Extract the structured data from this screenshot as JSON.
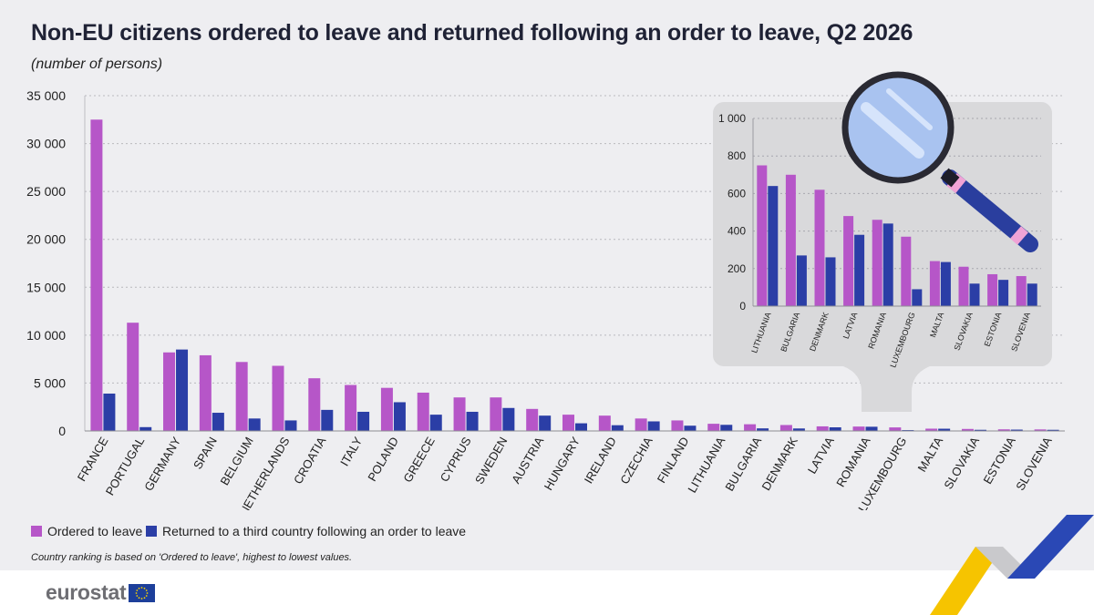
{
  "title": "Non-EU citizens ordered to leave and returned following an order to leave, Q2 2026",
  "subtitle": "(number of persons)",
  "note": "Country ranking is based on 'Ordered to leave', highest to lowest values.",
  "logo_text": "eurostat",
  "colors": {
    "ordered": "#b656c8",
    "returned": "#2b3ea6",
    "background": "#eeeef1",
    "inset_bg": "#d9d9db"
  },
  "legend": [
    {
      "label": "Ordered to leave",
      "color": "#b656c8"
    },
    {
      "label": "Returned to a third country following an order to leave",
      "color": "#2b3ea6"
    }
  ],
  "chart_data": [
    {
      "type": "bar",
      "title": "Non-EU citizens ordered to leave and returned following an order to leave, Q2 2026",
      "ylabel": "(number of persons)",
      "ylim": [
        0,
        35000
      ],
      "yticks": [
        0,
        5000,
        10000,
        15000,
        20000,
        25000,
        30000,
        35000
      ],
      "ytick_labels": [
        "0",
        "5 000",
        "10 000",
        "15 000",
        "20 000",
        "25 000",
        "30 000",
        "35 000"
      ],
      "grid": true,
      "categories": [
        "FRANCE",
        "PORTUGAL",
        "GERMANY",
        "SPAIN",
        "BELGIUM",
        "NETHERLANDS",
        "CROATIA",
        "ITALY",
        "POLAND",
        "GREECE",
        "CYPRUS",
        "SWEDEN",
        "AUSTRIA",
        "HUNGARY",
        "IRELAND",
        "CZECHIA",
        "FINLAND",
        "LITHUANIA",
        "BULGARIA",
        "DENMARK",
        "LATVIA",
        "ROMANIA",
        "LUXEMBOURG",
        "MALTA",
        "SLOVAKIA",
        "ESTONIA",
        "SLOVENIA"
      ],
      "series": [
        {
          "name": "Ordered to leave",
          "values": [
            32500,
            11300,
            8200,
            7900,
            7200,
            6800,
            5500,
            4800,
            4500,
            4000,
            3500,
            3500,
            2300,
            1700,
            1600,
            1300,
            1100,
            750,
            700,
            620,
            480,
            460,
            370,
            240,
            210,
            170,
            160
          ]
        },
        {
          "name": "Returned to a third country following an order to leave",
          "values": [
            3900,
            400,
            8500,
            1900,
            1300,
            1100,
            2200,
            2000,
            3000,
            1700,
            2000,
            2400,
            1600,
            800,
            600,
            1000,
            550,
            640,
            270,
            260,
            380,
            440,
            90,
            235,
            120,
            140,
            120
          ]
        }
      ]
    },
    {
      "type": "bar",
      "title": "",
      "ylim": [
        0,
        1000
      ],
      "yticks": [
        0,
        200,
        400,
        600,
        800,
        1000
      ],
      "ytick_labels": [
        "0",
        "200",
        "400",
        "600",
        "800",
        "1 000"
      ],
      "grid": true,
      "categories": [
        "LITHUANIA",
        "BULGARIA",
        "DENMARK",
        "LATVIA",
        "ROMANIA",
        "LUXEMBOURG",
        "MALTA",
        "SLOVAKIA",
        "ESTONIA",
        "SLOVENIA"
      ],
      "series": [
        {
          "name": "Ordered to leave",
          "values": [
            750,
            700,
            620,
            480,
            460,
            370,
            240,
            210,
            170,
            160
          ]
        },
        {
          "name": "Returned to a third country following an order to leave",
          "values": [
            640,
            270,
            260,
            380,
            440,
            90,
            235,
            120,
            140,
            120
          ]
        }
      ]
    }
  ]
}
